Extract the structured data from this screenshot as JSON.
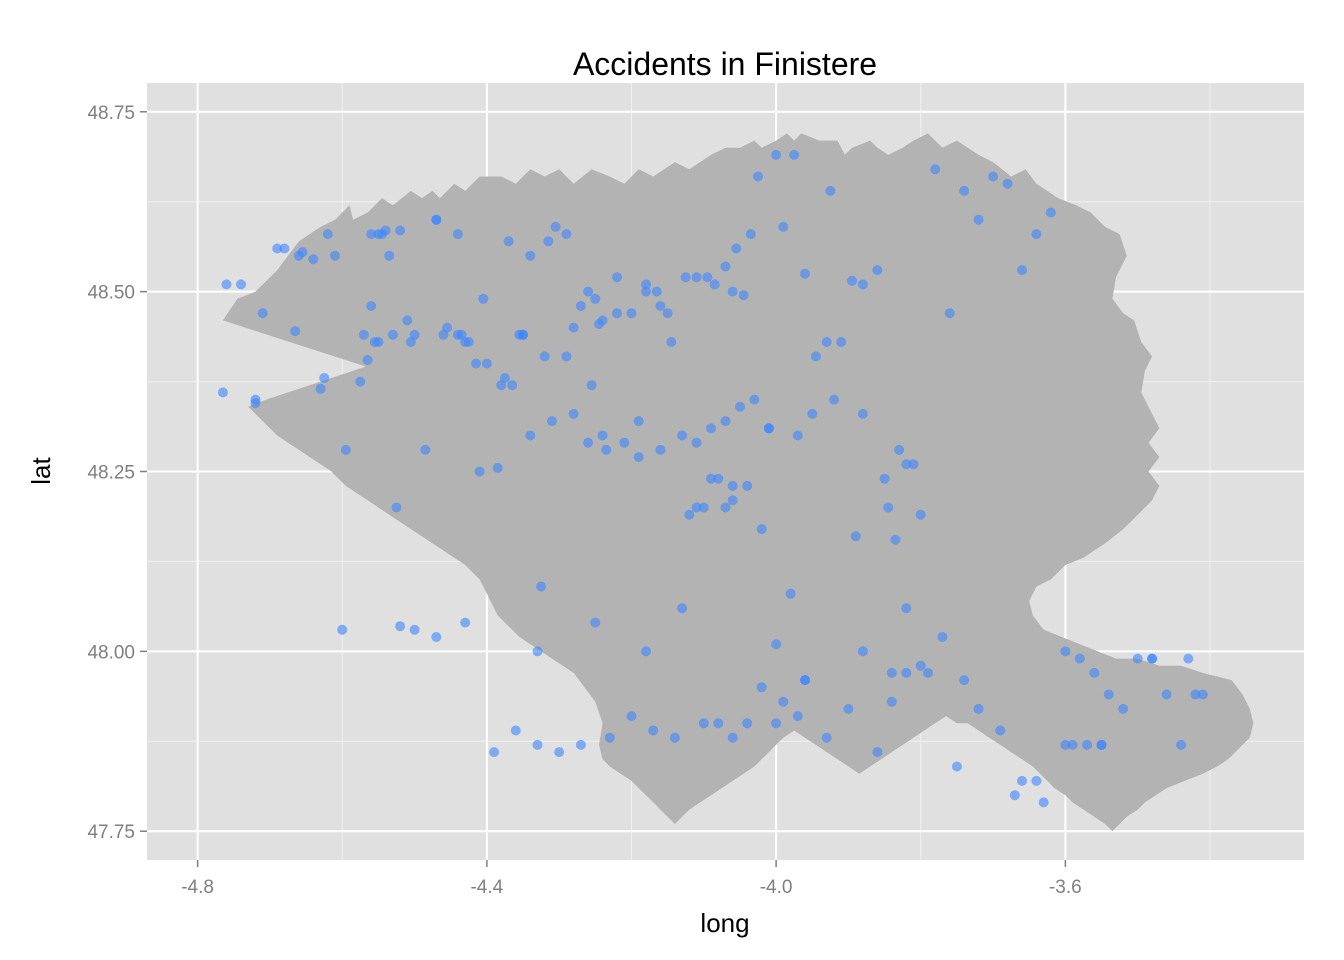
{
  "chart_data": {
    "type": "scatter",
    "title": "Accidents in Finistere",
    "xlabel": "long",
    "ylabel": "lat",
    "xlim": [
      -4.87,
      -3.27
    ],
    "ylim": [
      47.71,
      48.79
    ],
    "x_ticks": [
      -4.8,
      -4.4,
      -4.0,
      -3.6
    ],
    "x_tick_labels": [
      "-4.8",
      "-4.4",
      "-4.0",
      "-3.6"
    ],
    "y_ticks": [
      47.75,
      48.0,
      48.25,
      48.5,
      48.75
    ],
    "y_tick_labels": [
      "47.75",
      "48.00",
      "48.25",
      "48.50",
      "48.75"
    ],
    "grid": true,
    "colors": {
      "panel": "#e0e0e0",
      "map_fill": "#b3b3b3",
      "point": "#3a86ff",
      "grid_major": "#ffffff",
      "grid_minor": "#f0f0f0"
    },
    "map_outline": {
      "fill": "#b3b3b3",
      "lon": [
        -4.765,
        -4.745,
        -4.72,
        -4.69,
        -4.66,
        -4.63,
        -4.61,
        -4.59,
        -4.585,
        -4.565,
        -4.545,
        -4.53,
        -4.505,
        -4.49,
        -4.475,
        -4.465,
        -4.445,
        -4.43,
        -4.41,
        -4.38,
        -4.36,
        -4.34,
        -4.32,
        -4.3,
        -4.28,
        -4.255,
        -4.23,
        -4.21,
        -4.19,
        -4.17,
        -4.14,
        -4.12,
        -4.09,
        -4.07,
        -4.05,
        -4.03,
        -4.02,
        -4.0,
        -3.985,
        -3.975,
        -3.965,
        -3.94,
        -3.915,
        -3.905,
        -3.895,
        -3.87,
        -3.86,
        -3.845,
        -3.825,
        -3.81,
        -3.79,
        -3.77,
        -3.75,
        -3.72,
        -3.7,
        -3.675,
        -3.655,
        -3.64,
        -3.625,
        -3.61,
        -3.585,
        -3.565,
        -3.545,
        -3.525,
        -3.515,
        -3.53,
        -3.535,
        -3.52,
        -3.505,
        -3.495,
        -3.48,
        -3.49,
        -3.495,
        -3.485,
        -3.47,
        -3.485,
        -3.47,
        -3.485,
        -3.47,
        -3.48,
        -3.5,
        -3.52,
        -3.545,
        -3.575,
        -3.6,
        -3.62,
        -3.64,
        -3.65,
        -3.645,
        -3.63,
        -3.605,
        -3.58,
        -3.555,
        -3.53,
        -3.5,
        -3.47,
        -3.44,
        -3.41,
        -3.37,
        -3.355,
        -3.345,
        -3.34,
        -3.345,
        -3.355,
        -3.365,
        -3.375,
        -3.39,
        -3.41,
        -3.435,
        -3.46,
        -3.475,
        -3.49,
        -3.5,
        -3.515,
        -3.525,
        -3.535,
        -3.545,
        -3.56,
        -3.575,
        -3.59,
        -3.6,
        -3.615,
        -3.625,
        -3.635,
        -3.645,
        -3.66,
        -3.675,
        -3.69,
        -3.705,
        -3.72,
        -3.735,
        -3.75,
        -3.765,
        -3.78,
        -3.795,
        -3.81,
        -3.825,
        -3.84,
        -3.855,
        -3.87,
        -3.885,
        -3.9,
        -3.915,
        -3.93,
        -3.945,
        -3.96,
        -3.975,
        -3.99,
        -4.0,
        -4.01,
        -4.02,
        -4.03,
        -4.045,
        -4.06,
        -4.075,
        -4.09,
        -4.105,
        -4.12,
        -4.13,
        -4.14,
        -4.15,
        -4.16,
        -4.17,
        -4.18,
        -4.19,
        -4.2,
        -4.215,
        -4.23,
        -4.24,
        -4.245,
        -4.24,
        -4.25,
        -4.265,
        -4.28,
        -4.295,
        -4.31,
        -4.325,
        -4.34,
        -4.355,
        -4.365,
        -4.375,
        -4.385,
        -4.39,
        -4.395,
        -4.4,
        -4.405,
        -4.41,
        -4.42,
        -4.43,
        -4.445,
        -4.46,
        -4.475,
        -4.49,
        -4.505,
        -4.52,
        -4.535,
        -4.55,
        -4.565,
        -4.58,
        -4.595,
        -4.605,
        -4.615,
        -4.63,
        -4.645,
        -4.66,
        -4.675,
        -4.69,
        -4.7,
        -4.71,
        -4.72,
        -4.73,
        -4.705,
        -4.675,
        -4.645,
        -4.615,
        -4.585,
        -4.555,
        -4.53,
        -4.505,
        -4.485,
        -4.465,
        -4.445,
        -4.425,
        -4.405,
        -4.385,
        -4.365,
        -4.345,
        -4.33,
        -4.315,
        -4.3,
        -4.285,
        -4.27,
        -4.255,
        -4.245,
        -4.245,
        -4.26,
        -4.275,
        -4.29,
        -4.31,
        -4.33,
        -4.345,
        -4.36,
        -4.37,
        -4.375,
        -4.39,
        -4.405,
        -4.42,
        -4.44,
        -4.46,
        -4.48,
        -4.5,
        -4.51,
        -4.52,
        -4.535,
        -4.55,
        -4.565,
        -4.575,
        -4.59,
        -4.605,
        -4.62,
        -4.615,
        -4.6,
        -4.585,
        -4.575,
        -4.56,
        -4.545,
        -4.53,
        -4.515,
        -4.5,
        -4.49,
        -4.475,
        -4.46,
        -4.445,
        -4.43,
        -4.42,
        -4.41,
        -4.4,
        -4.39,
        -4.375,
        -4.36,
        -4.345,
        -4.33,
        -4.315,
        -4.3,
        -4.28,
        -4.26,
        -4.24,
        -4.22,
        -4.2,
        -4.18,
        -4.165,
        -4.15,
        -4.135,
        -4.12,
        -4.105,
        -4.09,
        -4.075,
        -4.06,
        -4.045,
        -4.03,
        -4.015,
        -4.0,
        -3.985,
        -3.97
      ],
      "lat": [
        48.46,
        48.49,
        48.5,
        48.53,
        48.57,
        48.59,
        48.6,
        48.62,
        48.6,
        48.61,
        48.63,
        48.62,
        48.64,
        48.63,
        48.64,
        48.63,
        48.65,
        48.64,
        48.66,
        48.66,
        48.65,
        48.67,
        48.66,
        48.67,
        48.65,
        48.67,
        48.66,
        48.65,
        48.67,
        48.66,
        48.68,
        48.67,
        48.69,
        48.7,
        48.7,
        48.71,
        48.7,
        48.71,
        48.72,
        48.71,
        48.72,
        48.71,
        48.71,
        48.69,
        48.7,
        48.71,
        48.7,
        48.69,
        48.7,
        48.71,
        48.72,
        48.7,
        48.71,
        48.69,
        48.68,
        48.66,
        48.67,
        48.65,
        48.64,
        48.63,
        48.62,
        48.61,
        48.59,
        48.58,
        48.55,
        48.52,
        48.49,
        48.47,
        48.46,
        48.43,
        48.41,
        48.39,
        48.36,
        48.34,
        48.31,
        48.29,
        48.27,
        48.25,
        48.23,
        48.21,
        48.19,
        48.17,
        48.15,
        48.13,
        48.12,
        48.1,
        48.09,
        48.07,
        48.05,
        48.03,
        48.02,
        48.01,
        48.0,
        47.99,
        47.99,
        47.98,
        47.98,
        47.97,
        47.96,
        47.94,
        47.92,
        47.9,
        47.88,
        47.87,
        47.86,
        47.85,
        47.84,
        47.83,
        47.82,
        47.81,
        47.8,
        47.79,
        47.78,
        47.77,
        47.76,
        47.75,
        47.76,
        47.77,
        47.78,
        47.79,
        47.8,
        47.81,
        47.82,
        47.83,
        47.84,
        47.85,
        47.86,
        47.87,
        47.88,
        47.89,
        47.9,
        47.9,
        47.91,
        47.9,
        47.89,
        47.88,
        47.87,
        47.86,
        47.85,
        47.84,
        47.83,
        47.84,
        47.85,
        47.86,
        47.87,
        47.88,
        47.89,
        47.88,
        47.87,
        47.86,
        47.85,
        47.84,
        47.83,
        47.82,
        47.81,
        47.8,
        47.79,
        47.78,
        47.77,
        47.76,
        47.77,
        47.78,
        47.79,
        47.8,
        47.81,
        47.82,
        47.83,
        47.84,
        47.85,
        47.87,
        47.9,
        47.93,
        47.95,
        47.97,
        47.98,
        47.99,
        48.0,
        48.01,
        48.02,
        48.03,
        48.04,
        48.05,
        48.06,
        48.07,
        48.08,
        48.09,
        48.1,
        48.11,
        48.12,
        48.13,
        48.14,
        48.15,
        48.16,
        48.17,
        48.18,
        48.19,
        48.2,
        48.21,
        48.22,
        48.23,
        48.24,
        48.25,
        48.26,
        48.27,
        48.28,
        48.29,
        48.3,
        48.31,
        48.32,
        48.33,
        48.34,
        48.35,
        48.36,
        48.37,
        48.38,
        48.39,
        48.4,
        48.41,
        48.42,
        48.43,
        48.44,
        48.45,
        48.44,
        48.43,
        48.42,
        48.41,
        48.4,
        48.39,
        48.38,
        48.37,
        48.36,
        48.35,
        48.34,
        48.33,
        48.32,
        48.31,
        48.3,
        48.29,
        48.28,
        48.27,
        48.26,
        48.25,
        48.24,
        48.23,
        48.22,
        48.21,
        48.2,
        48.21,
        48.22,
        48.23,
        48.24,
        48.25,
        48.26,
        48.27,
        48.28,
        48.29,
        48.3,
        48.31,
        48.32,
        48.33,
        48.34,
        48.35,
        48.36,
        48.37,
        48.38,
        48.39,
        48.4,
        48.41,
        48.42,
        48.43,
        48.44,
        48.45,
        48.44,
        48.43,
        48.42,
        48.41,
        48.4,
        48.39,
        48.38,
        48.37,
        48.36,
        48.35,
        48.34,
        48.33,
        48.32,
        48.31,
        48.3,
        48.29,
        48.28,
        48.27
      ]
    },
    "x": [
      -4.765,
      -4.72,
      -4.72,
      -4.69,
      -4.665,
      -4.655,
      -4.64,
      -4.63,
      -4.625,
      -4.595,
      -4.575,
      -4.57,
      -4.565,
      -4.56,
      -4.555,
      -4.55,
      -4.545,
      -4.54,
      -4.535,
      -4.525,
      -4.52,
      -4.51,
      -4.505,
      -4.485,
      -4.47,
      -4.455,
      -4.44,
      -4.435,
      -4.425,
      -4.415,
      -4.405,
      -4.385,
      -4.375,
      -4.365,
      -4.355,
      -4.35,
      -4.34,
      -4.325,
      -4.315,
      -4.305,
      -4.29,
      -4.28,
      -4.27,
      -4.26,
      -4.255,
      -4.25,
      -4.245,
      -4.24,
      -4.235,
      -4.22,
      -4.2,
      -4.19,
      -4.18,
      -4.165,
      -4.16,
      -4.145,
      -4.125,
      -4.11,
      -4.095,
      -4.085,
      -4.07,
      -4.06,
      -4.055,
      -4.045,
      -4.035,
      -4.025,
      -4.01,
      -4.0,
      -3.99,
      -3.975,
      -3.96,
      -3.945,
      -3.925,
      -3.91,
      -3.895,
      -3.88,
      -3.86,
      -3.845,
      -3.835,
      -3.82,
      -3.8,
      -3.78,
      -3.76,
      -3.74,
      -3.72,
      -3.7,
      -3.68,
      -3.66,
      -3.64,
      -3.62,
      -3.6,
      -3.58,
      -3.56,
      -3.54,
      -3.52,
      -3.5,
      -3.48,
      -3.46,
      -3.44,
      -3.42,
      -4.6,
      -4.52,
      -4.5,
      -4.47,
      -4.43,
      -4.33,
      -4.25,
      -4.18,
      -4.13,
      -4.1,
      -4.07,
      -4.06,
      -4.04,
      -4.02,
      -4.0,
      -3.98,
      -3.96,
      -3.93,
      -3.88,
      -3.84,
      -3.82,
      -3.8,
      -3.77,
      -3.74,
      -3.72,
      -3.69,
      -3.66,
      -3.63,
      -3.6,
      -3.57,
      -3.55,
      -3.48,
      -3.43,
      -3.41,
      -4.09,
      -4.08,
      -4.06,
      -4.11,
      -4.12,
      -4.0,
      -3.97,
      -3.89,
      -3.84,
      -3.81,
      -4.38,
      -4.4,
      -4.43,
      -4.46,
      -4.5,
      -4.53,
      -4.55,
      -4.41,
      -4.32,
      -4.26,
      -4.18,
      -4.15,
      -4.22,
      -4.29,
      -4.35,
      -4.37,
      -4.44,
      -4.47,
      -4.56,
      -4.61,
      -4.62,
      -4.66,
      -4.68,
      -4.71,
      -4.74,
      -4.76,
      -3.55,
      -3.59,
      -3.64,
      -3.67,
      -3.75,
      -3.79,
      -3.82,
      -3.86,
      -3.9,
      -3.93,
      -3.96,
      -3.99,
      -4.02,
      -4.04,
      -4.06,
      -4.08,
      -4.1,
      -4.14,
      -4.17,
      -4.2,
      -4.23,
      -4.27,
      -4.3,
      -4.33,
      -4.36,
      -4.39,
      -3.83,
      -3.85,
      -3.88,
      -3.92,
      -3.95,
      -3.97,
      -4.01,
      -4.03,
      -4.05,
      -4.07,
      -4.09,
      -4.11,
      -4.13,
      -4.16,
      -4.19,
      -4.21,
      -4.24,
      -4.28,
      -4.31,
      -4.34
    ],
    "y": [
      48.36,
      48.35,
      48.345,
      48.56,
      48.445,
      48.555,
      48.545,
      48.365,
      48.38,
      48.28,
      48.375,
      48.44,
      48.405,
      48.48,
      48.43,
      48.58,
      48.58,
      48.585,
      48.55,
      48.2,
      48.585,
      48.46,
      48.43,
      48.28,
      48.6,
      48.45,
      48.44,
      48.44,
      48.43,
      48.4,
      48.49,
      48.255,
      48.38,
      48.37,
      48.44,
      48.44,
      48.55,
      48.09,
      48.57,
      48.59,
      48.58,
      48.45,
      48.48,
      48.5,
      48.37,
      48.49,
      48.455,
      48.46,
      48.28,
      48.47,
      48.47,
      48.32,
      48.51,
      48.5,
      48.48,
      48.43,
      48.52,
      48.52,
      48.52,
      48.51,
      48.535,
      48.5,
      48.56,
      48.495,
      48.58,
      48.66,
      48.31,
      48.69,
      48.59,
      48.69,
      48.525,
      48.41,
      48.64,
      48.43,
      48.515,
      48.51,
      48.53,
      48.2,
      48.155,
      48.26,
      48.19,
      48.67,
      48.47,
      48.64,
      48.6,
      48.66,
      48.65,
      48.53,
      48.58,
      48.61,
      48.0,
      47.99,
      47.97,
      47.94,
      47.92,
      47.99,
      47.99,
      47.94,
      47.87,
      47.94,
      48.03,
      48.035,
      48.03,
      48.02,
      48.04,
      48.0,
      48.04,
      48.0,
      48.06,
      48.2,
      48.2,
      48.21,
      48.23,
      48.17,
      48.01,
      48.08,
      47.96,
      48.43,
      48.0,
      47.97,
      48.06,
      47.98,
      48.02,
      47.96,
      47.92,
      47.89,
      47.82,
      47.79,
      47.87,
      47.87,
      47.87,
      47.99,
      47.99,
      47.94,
      48.24,
      48.24,
      48.23,
      48.2,
      48.19,
      47.9,
      47.91,
      48.16,
      47.93,
      48.26,
      48.37,
      48.4,
      48.43,
      48.44,
      48.44,
      48.44,
      48.43,
      48.25,
      48.41,
      48.29,
      48.5,
      48.47,
      48.52,
      48.41,
      48.44,
      48.57,
      48.58,
      48.6,
      48.58,
      48.55,
      48.58,
      48.55,
      48.56,
      48.47,
      48.51,
      48.51,
      47.87,
      47.87,
      47.82,
      47.8,
      47.84,
      47.97,
      47.97,
      47.86,
      47.92,
      47.88,
      47.96,
      47.93,
      47.95,
      47.9,
      47.88,
      47.9,
      47.9,
      47.88,
      47.89,
      47.91,
      47.88,
      47.87,
      47.86,
      47.87,
      47.89,
      47.86,
      48.28,
      48.24,
      48.33,
      48.35,
      48.33,
      48.3,
      48.31,
      48.35,
      48.34,
      48.32,
      48.31,
      48.29,
      48.3,
      48.28,
      48.27,
      48.29,
      48.3,
      48.33,
      48.32,
      48.3
    ]
  }
}
